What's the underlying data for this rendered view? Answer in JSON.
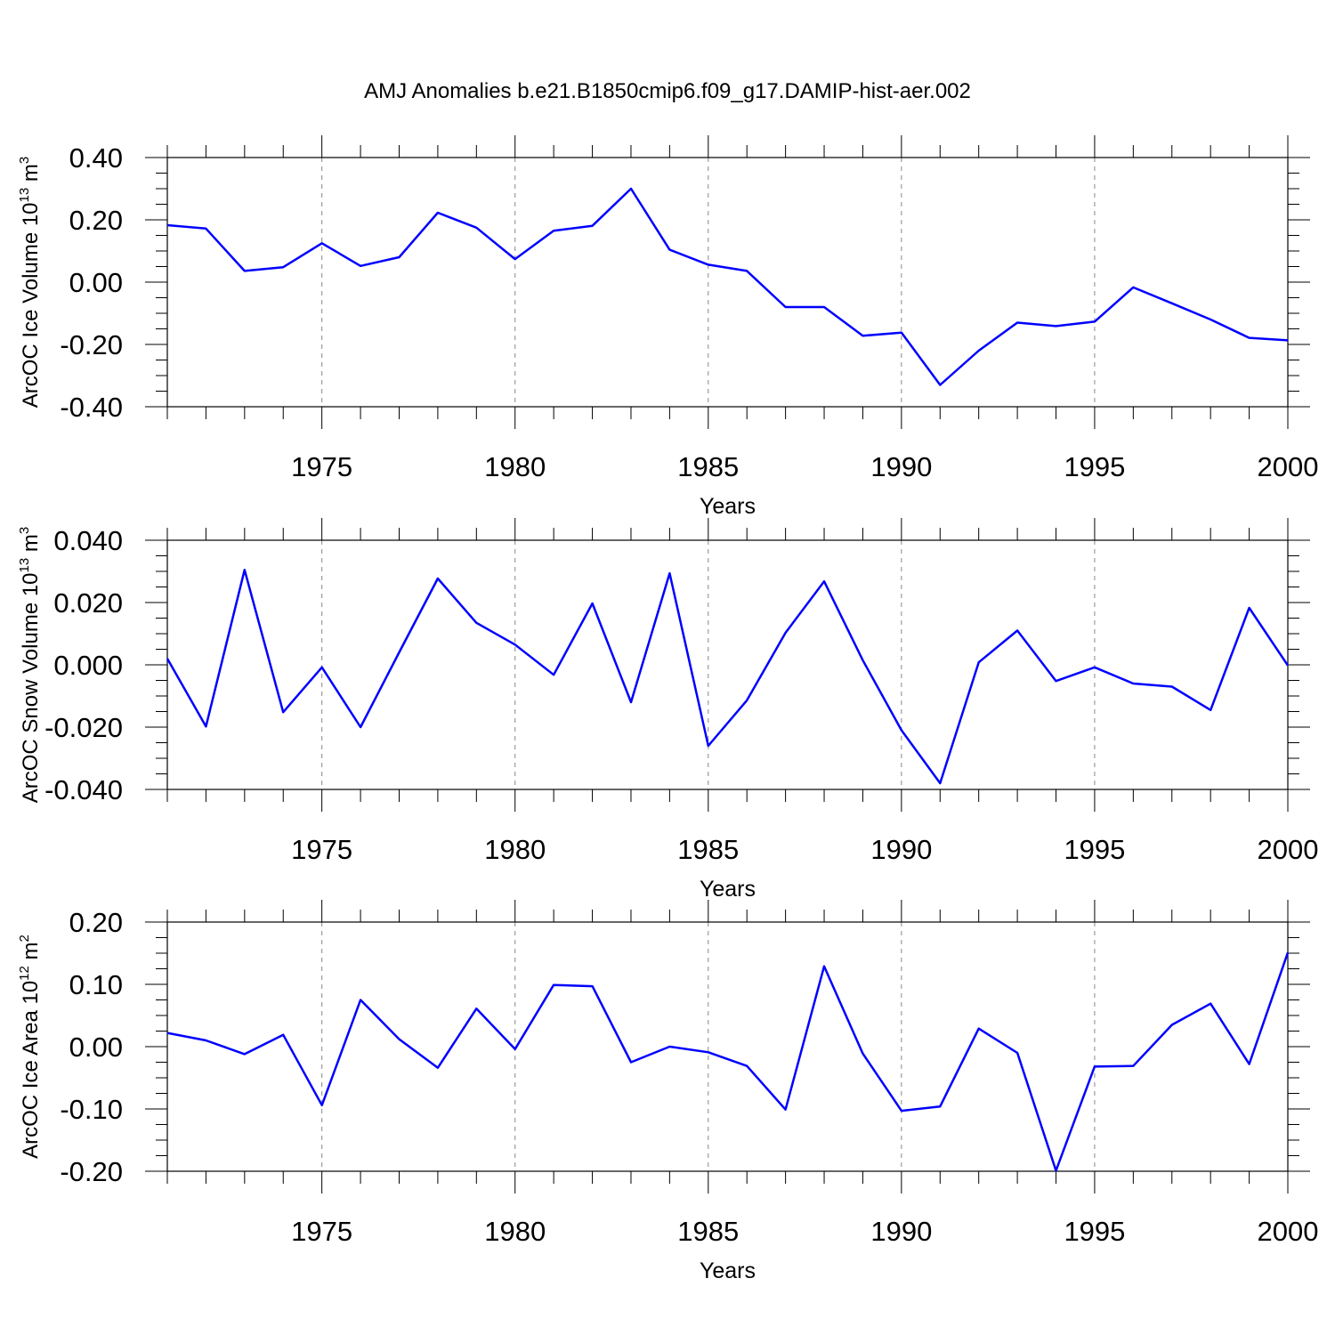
{
  "title": "AMJ Anomalies b.e21.B1850cmip6.f09_g17.DAMIP-hist-aer.002",
  "line_color": "#0000ff",
  "chart_data": [
    {
      "type": "line",
      "title": "AMJ Anomalies b.e21.B1850cmip6.f09_g17.DAMIP-hist-aer.002",
      "xlabel": "Years",
      "ylabel": {
        "main": "ArcOC Ice Volume 10",
        "exp": "13",
        "unit": " m",
        "unit_exp": "3"
      },
      "xlim": [
        1971,
        2000
      ],
      "ylim": [
        -0.4,
        0.4
      ],
      "x_ticks": [
        "1975",
        "1980",
        "1985",
        "1990",
        "1995",
        "2000"
      ],
      "x_tick_values": [
        1975,
        1980,
        1985,
        1990,
        1995,
        2000
      ],
      "y_ticks": [
        "-0.40",
        "-0.20",
        "0.00",
        "0.20",
        "0.40"
      ],
      "y_tick_values": [
        -0.4,
        -0.2,
        0.0,
        0.2,
        0.4
      ],
      "grid": "dashed vertical at x ticks",
      "series": [
        {
          "name": "Ice Volume",
          "x": [
            1971,
            1972,
            1973,
            1974,
            1975,
            1976,
            1977,
            1978,
            1979,
            1980,
            1981,
            1982,
            1983,
            1984,
            1985,
            1986,
            1987,
            1988,
            1989,
            1990,
            1991,
            1992,
            1993,
            1994,
            1995,
            1996,
            1997,
            1998,
            1999,
            2000
          ],
          "values": [
            0.183,
            0.172,
            0.036,
            0.048,
            0.125,
            0.052,
            0.08,
            0.223,
            0.175,
            0.074,
            0.165,
            0.181,
            0.3,
            0.104,
            0.056,
            0.036,
            -0.08,
            -0.08,
            -0.172,
            -0.162,
            -0.33,
            -0.22,
            -0.13,
            -0.141,
            -0.127,
            -0.017,
            -0.068,
            -0.12,
            -0.179,
            -0.187
          ]
        }
      ]
    },
    {
      "type": "line",
      "xlabel": "Years",
      "ylabel": {
        "main": "ArcOC Snow Volume 10",
        "exp": "13",
        "unit": " m",
        "unit_exp": "3"
      },
      "xlim": [
        1971,
        2000
      ],
      "ylim": [
        -0.04,
        0.04
      ],
      "x_ticks": [
        "1975",
        "1980",
        "1985",
        "1990",
        "1995",
        "2000"
      ],
      "x_tick_values": [
        1975,
        1980,
        1985,
        1990,
        1995,
        2000
      ],
      "y_ticks": [
        "-0.040",
        "-0.020",
        "0.000",
        "0.020",
        "0.040"
      ],
      "y_tick_values": [
        -0.04,
        -0.02,
        0.0,
        0.02,
        0.04
      ],
      "grid": "dashed vertical at x ticks",
      "series": [
        {
          "name": "Snow Volume",
          "x": [
            1971,
            1972,
            1973,
            1974,
            1975,
            1976,
            1977,
            1978,
            1979,
            1980,
            1981,
            1982,
            1983,
            1984,
            1985,
            1986,
            1987,
            1988,
            1989,
            1990,
            1991,
            1992,
            1993,
            1994,
            1995,
            1996,
            1997,
            1998,
            1999,
            2000
          ],
          "values": [
            0.002,
            -0.0198,
            0.0305,
            -0.0152,
            -0.0008,
            -0.02,
            0.004,
            0.0277,
            0.0135,
            0.0065,
            -0.0032,
            0.0197,
            -0.012,
            0.0294,
            -0.026,
            -0.0114,
            0.0103,
            0.0268,
            0.0015,
            -0.021,
            -0.038,
            0.0008,
            0.011,
            -0.0052,
            -0.0008,
            -0.006,
            -0.007,
            -0.0145,
            0.0183,
            -0.0002
          ]
        }
      ]
    },
    {
      "type": "line",
      "xlabel": "Years",
      "ylabel": {
        "main": "ArcOC Ice Area 10",
        "exp": "12",
        "unit": " m",
        "unit_exp": "2"
      },
      "xlim": [
        1971,
        2000
      ],
      "ylim": [
        -0.2,
        0.2
      ],
      "x_ticks": [
        "1975",
        "1980",
        "1985",
        "1990",
        "1995",
        "2000"
      ],
      "x_tick_values": [
        1975,
        1980,
        1985,
        1990,
        1995,
        2000
      ],
      "y_ticks": [
        "-0.20",
        "-0.10",
        "0.00",
        "0.10",
        "0.20"
      ],
      "y_tick_values": [
        -0.2,
        -0.1,
        0.0,
        0.1,
        0.2
      ],
      "grid": "dashed vertical at x ticks",
      "series": [
        {
          "name": "Ice Area",
          "x": [
            1971,
            1972,
            1973,
            1974,
            1975,
            1976,
            1977,
            1978,
            1979,
            1980,
            1981,
            1982,
            1983,
            1984,
            1985,
            1986,
            1987,
            1988,
            1989,
            1990,
            1991,
            1992,
            1993,
            1994,
            1995,
            1996,
            1997,
            1998,
            1999,
            2000
          ],
          "values": [
            0.022,
            0.01,
            -0.012,
            0.019,
            -0.094,
            0.075,
            0.012,
            -0.034,
            0.061,
            -0.004,
            0.099,
            0.097,
            -0.025,
            0.0,
            -0.009,
            -0.031,
            -0.101,
            0.129,
            -0.011,
            -0.103,
            -0.096,
            0.029,
            -0.01,
            -0.199,
            -0.032,
            -0.031,
            0.035,
            0.069,
            -0.028,
            0.151
          ]
        }
      ]
    }
  ]
}
